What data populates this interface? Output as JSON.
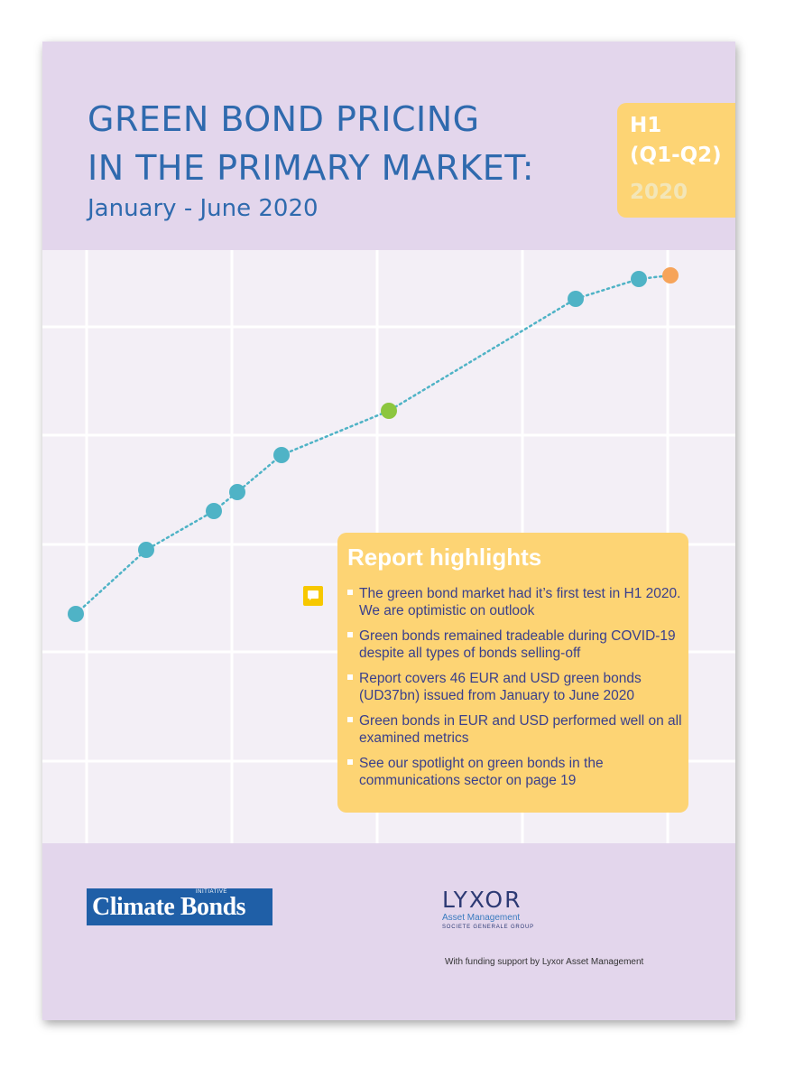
{
  "header": {
    "title_line1": "GREEN BOND PRICING",
    "title_line2": "IN THE PRIMARY MARKET:",
    "subtitle": "January - June 2020",
    "badge": {
      "line1": "H1",
      "line2": "(Q1-Q2)",
      "line3": "2020"
    }
  },
  "highlights": {
    "heading": "Report highlights",
    "items": [
      "The green bond market had it’s first test in H1 2020. We are optimistic on outlook",
      "Green bonds remained tradeable during COVID-19 despite all types of bonds selling-off",
      "Report covers 46 EUR and USD green bonds (UD37bn) issued from January to June 2020",
      "Green bonds in EUR and USD performed well on all examined metrics",
      "See our spotlight on green bonds in the communications sector on page 19"
    ]
  },
  "footer": {
    "climate_bonds_logo": "Climate Bonds",
    "climate_bonds_tag": "INITIATIVE",
    "lyxor_logo": "LYXOR",
    "lyxor_sub": "Asset Management",
    "lyxor_group": "SOCIETE GENERALE GROUP",
    "funding_note": "With funding support by Lyxor Asset Management"
  },
  "colors": {
    "header_bg": "#e3d6ec",
    "title_blue": "#2f6aae",
    "badge_yellow": "#fdd474",
    "dot_teal": "#4fb3c6",
    "dot_green": "#8cc63f",
    "dot_orange": "#f6a45a"
  },
  "icons": {
    "comment": "comment-icon"
  }
}
